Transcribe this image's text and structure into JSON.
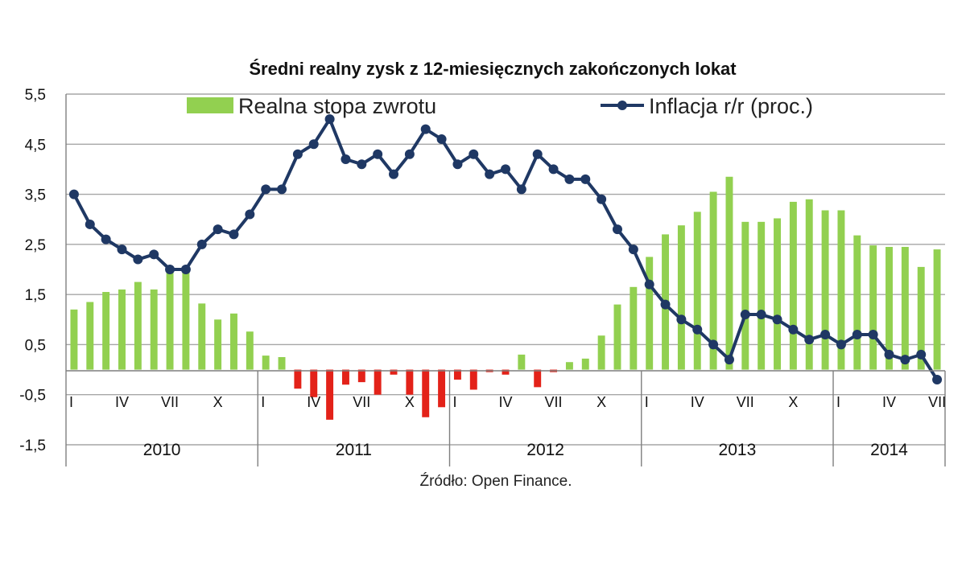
{
  "chart_data": {
    "type": "bar+line",
    "title": "Średni realny zysk z 12-miesięcznych zakończonych lokat",
    "source": "Źródło: Open Finance.",
    "ylim": [
      -1.5,
      5.5
    ],
    "yticks": [
      "5,5",
      "4,5",
      "3,5",
      "2,5",
      "1,5",
      "0,5",
      "-0,5",
      "-1,5"
    ],
    "grid": "horizontal",
    "legend_position": "top",
    "colors": {
      "bar_positive": "#92D050",
      "bar_negative": "#E32219",
      "line": "#1F3864",
      "grid": "#A6A6A6"
    },
    "years": [
      {
        "label": "2010",
        "start": 0,
        "end": 12
      },
      {
        "label": "2011",
        "start": 12,
        "end": 24
      },
      {
        "label": "2012",
        "start": 24,
        "end": 36
      },
      {
        "label": "2013",
        "start": 36,
        "end": 48
      },
      {
        "label": "2014",
        "start": 48,
        "end": 55
      }
    ],
    "month_ticks": [
      {
        "index": 0,
        "label": "I"
      },
      {
        "index": 3,
        "label": "IV"
      },
      {
        "index": 6,
        "label": "VII"
      },
      {
        "index": 9,
        "label": "X"
      },
      {
        "index": 12,
        "label": "I"
      },
      {
        "index": 15,
        "label": "IV"
      },
      {
        "index": 18,
        "label": "VII"
      },
      {
        "index": 21,
        "label": "X"
      },
      {
        "index": 24,
        "label": "I"
      },
      {
        "index": 27,
        "label": "IV"
      },
      {
        "index": 30,
        "label": "VII"
      },
      {
        "index": 33,
        "label": "X"
      },
      {
        "index": 36,
        "label": "I"
      },
      {
        "index": 39,
        "label": "IV"
      },
      {
        "index": 42,
        "label": "VII"
      },
      {
        "index": 45,
        "label": "X"
      },
      {
        "index": 48,
        "label": "I"
      },
      {
        "index": 51,
        "label": "IV"
      },
      {
        "index": 54,
        "label": "VII"
      }
    ],
    "series": [
      {
        "name": "Realna stopa zwrotu",
        "type": "bar",
        "values": [
          1.2,
          1.35,
          1.55,
          1.6,
          1.75,
          1.6,
          1.95,
          1.95,
          1.32,
          1.0,
          1.12,
          0.76,
          0.28,
          0.25,
          -0.38,
          -0.55,
          -1.0,
          -0.3,
          -0.25,
          -0.5,
          -0.1,
          -0.5,
          -0.95,
          -0.75,
          -0.2,
          -0.4,
          -0.05,
          -0.1,
          0.3,
          -0.35,
          -0.05,
          0.15,
          0.22,
          0.68,
          1.3,
          1.65,
          2.25,
          2.7,
          2.88,
          3.15,
          3.55,
          3.85,
          2.95,
          2.95,
          3.02,
          3.35,
          3.4,
          3.18,
          3.18,
          2.68,
          2.48,
          2.45,
          2.45,
          2.05,
          2.4
        ]
      },
      {
        "name": "Inflacja r/r (proc.)",
        "type": "line",
        "values": [
          3.5,
          2.9,
          2.6,
          2.4,
          2.2,
          2.3,
          2.0,
          2.0,
          2.5,
          2.8,
          2.7,
          3.1,
          3.6,
          3.6,
          4.3,
          4.5,
          5.0,
          4.2,
          4.1,
          4.3,
          3.9,
          4.3,
          4.8,
          4.6,
          4.1,
          4.3,
          3.9,
          4.0,
          3.6,
          4.3,
          4.0,
          3.8,
          3.8,
          3.4,
          2.8,
          2.4,
          1.7,
          1.3,
          1.0,
          0.8,
          0.5,
          0.2,
          1.1,
          1.1,
          1.0,
          0.8,
          0.6,
          0.7,
          0.5,
          0.7,
          0.7,
          0.3,
          0.2,
          0.3,
          -0.2
        ]
      }
    ]
  }
}
